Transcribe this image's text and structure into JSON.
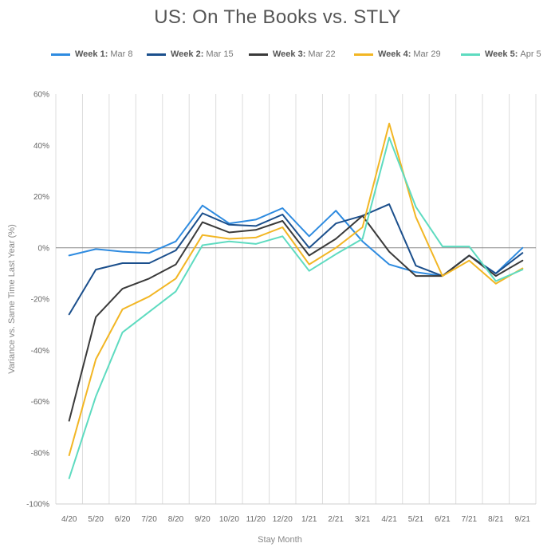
{
  "chart_data": {
    "type": "line",
    "title": "US:  On The Books vs. STLY",
    "xlabel": "Stay Month",
    "ylabel": "Variance vs. Same Time Last Year (%)",
    "categories": [
      "4/20",
      "5/20",
      "6/20",
      "7/20",
      "8/20",
      "9/20",
      "10/20",
      "11/20",
      "12/20",
      "1/21",
      "2/21",
      "3/21",
      "4/21",
      "5/21",
      "6/21",
      "7/21",
      "8/21",
      "9/21"
    ],
    "yticks": [
      "60%",
      "40%",
      "20%",
      "0%",
      "-20%",
      "-40%",
      "-60%",
      "-80%",
      "-100%"
    ],
    "ylim": [
      -100,
      60
    ],
    "grid": "vertical",
    "legend_position": "top",
    "series": [
      {
        "name": "Week 1:",
        "date": "Mar 8",
        "color": "#2E8BE0",
        "values": [
          -3,
          -0.5,
          -1.5,
          -2,
          2.5,
          16.5,
          9.5,
          11,
          15.5,
          4.5,
          14.5,
          2.5,
          -6.5,
          -9.5,
          -11,
          -3,
          -10,
          0
        ]
      },
      {
        "name": "Week 2:",
        "date": "Mar 15",
        "color": "#1B4F8C",
        "values": [
          -26,
          -8.5,
          -6,
          -6,
          -1,
          13.5,
          9,
          8.5,
          13,
          0,
          9.5,
          12.5,
          17,
          -7,
          -11,
          -3,
          -10,
          -2
        ]
      },
      {
        "name": "Week 3:",
        "date": "Mar 22",
        "color": "#3A3A3A",
        "values": [
          -67.5,
          -27,
          -16,
          -12,
          -6.5,
          10,
          6,
          7,
          10.5,
          -3,
          3.5,
          12.5,
          -1.5,
          -11,
          -11,
          -3,
          -11,
          -5
        ]
      },
      {
        "name": "Week 4:",
        "date": "Mar 29",
        "color": "#F2B624",
        "values": [
          -81,
          -43.5,
          -24,
          -19,
          -12,
          5,
          3.5,
          4,
          8,
          -6.5,
          0,
          8,
          48.5,
          12,
          -11,
          -5,
          -14,
          -8
        ]
      },
      {
        "name": "Week 5:",
        "date": "Apr 5",
        "color": "#5EDBC0",
        "values": [
          -90,
          -58,
          -33,
          -25,
          -17,
          1,
          2.5,
          1.5,
          4.5,
          -9,
          -2.5,
          3.5,
          43,
          16,
          0.5,
          0.5,
          -13,
          -8.5
        ]
      }
    ]
  }
}
